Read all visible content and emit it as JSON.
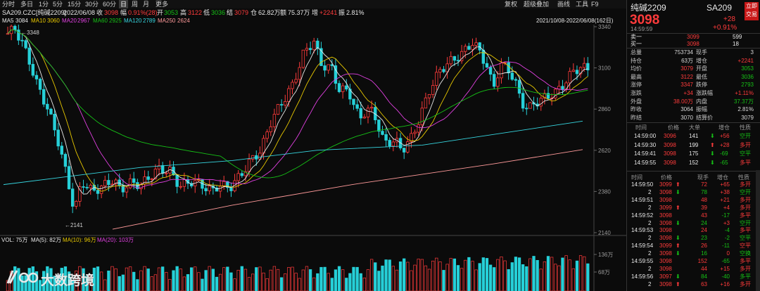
{
  "toolbar": {
    "periods": [
      "分时",
      "多日",
      "1分",
      "5分",
      "15分",
      "30分",
      "60分",
      "日",
      "周",
      "月",
      "更多"
    ],
    "active": "日",
    "right_items": [
      "复权",
      "超级叠加",
      "画线",
      "工具",
      "F9"
    ]
  },
  "infoline": {
    "symbol": "SA209.CZC[纯碱2209]",
    "date": "2022/06/08",
    "close_label": "收",
    "close": "3098",
    "change_label": "幅",
    "change": "0.91%(28)",
    "open_label": "开",
    "open": "3053",
    "high_label": "高",
    "high": "3122",
    "low_label": "低",
    "low": "3036",
    "settle_label": "结",
    "settle": "3079",
    "vol_label": "仓",
    "vol": "62.82万",
    "amount_label": "额",
    "amount": "75.37万",
    "oi_label": "增",
    "oi": "+2241",
    "amp_label": "振",
    "amp": "2.81%"
  },
  "maline": {
    "ma5_label": "MA5",
    "ma5": "3084",
    "ma10_label": "MA10",
    "ma10": "3060",
    "ma20_label": "MA20",
    "ma20": "2967",
    "ma60_label": "MA60",
    "ma60": "2925",
    "ma120_label": "MA120",
    "ma120": "2789",
    "ma250_label": "MA250",
    "ma250": "2624",
    "range": "2021/10/08-2022/06/08(162日)"
  },
  "colors": {
    "up": "#ff3b3b",
    "down": "#26d0d8",
    "ma5": "#e8e8e8",
    "ma10": "#e8c800",
    "ma20": "#e040e0",
    "ma60": "#16c116",
    "ma120": "#36d6e0",
    "ma250": "#ff9a9a"
  },
  "chart_data": {
    "type": "candlestick",
    "price_axis": {
      "ticks": [
        3340,
        3100,
        2860,
        2620,
        2380,
        2140
      ],
      "range": [
        2140,
        3340
      ]
    },
    "annotations": {
      "high": "3348",
      "low": "2141"
    },
    "volume_axis": {
      "ticks": [
        "136万",
        "68万"
      ]
    },
    "volume_legend": {
      "vol": "VOL: 75万",
      "ma5": "MA(5): 82万",
      "ma10": "MA(10): 96万",
      "ma20": "MA(20): 103万"
    },
    "candles": []
  },
  "panel": {
    "name": "纯碱2209",
    "code": "SA209",
    "price": "3098",
    "change": "+28",
    "pct": "+0.91%",
    "time": "14:59:59",
    "trade_button": [
      "立即",
      "交易"
    ],
    "book": [
      {
        "label": "卖一",
        "price": "3099",
        "vol": "599"
      },
      {
        "label": "买一",
        "price": "3098",
        "vol": "18"
      }
    ],
    "stats": [
      {
        "l1": "总量",
        "v1": "753734",
        "l2": "现手",
        "v2": "3",
        "c1": "white",
        "c2": "white"
      },
      {
        "l1": "持仓",
        "v1": "63万",
        "l2": "增仓",
        "v2": "+2241",
        "c1": "white",
        "c2": "red"
      },
      {
        "l1": "均价",
        "v1": "3079",
        "l2": "开盘",
        "v2": "3053",
        "c1": "red",
        "c2": "green"
      },
      {
        "l1": "最高",
        "v1": "3122",
        "l2": "最低",
        "v2": "3036",
        "c1": "red",
        "c2": "green"
      },
      {
        "l1": "涨停",
        "v1": "3347",
        "l2": "跌停",
        "v2": "2793",
        "c1": "red",
        "c2": "green"
      },
      {
        "l1": "涨跌",
        "v1": "+34",
        "l2": "涨跌幅",
        "v2": "+1.11%",
        "c1": "red",
        "c2": "red"
      },
      {
        "l1": "外盘",
        "v1": "38.00万",
        "l2": "内盘",
        "v2": "37.37万",
        "c1": "red",
        "c2": "green"
      },
      {
        "l1": "昨收",
        "v1": "3064",
        "l2": "振幅",
        "v2": "2.81%",
        "c1": "white",
        "c2": "white"
      },
      {
        "l1": "昨结",
        "v1": "3070",
        "l2": "结算价",
        "v2": "3079",
        "c1": "white",
        "c2": "white"
      }
    ],
    "trades_header": [
      "时间",
      "价格",
      "大单",
      "增仓",
      "性质"
    ],
    "trades": [
      {
        "t": "14:59:00",
        "p": "3096",
        "v": "141",
        "d": "+56",
        "n": "空开",
        "dir": "down"
      },
      {
        "t": "14:59:30",
        "p": "3098",
        "v": "199",
        "d": "+28",
        "n": "多开",
        "dir": "up"
      },
      {
        "t": "14:59:41",
        "p": "3098",
        "v": "175",
        "d": "-69",
        "n": "空平",
        "dir": "down"
      },
      {
        "t": "14:59:55",
        "p": "3098",
        "v": "152",
        "d": "-65",
        "n": "多平",
        "dir": "down"
      }
    ],
    "ticks_header": [
      "时间",
      "价格",
      "现手",
      "增仓",
      "性质"
    ],
    "ticks": [
      {
        "t": "14:59:50",
        "p": "3099",
        "v": "72",
        "d": "+65",
        "n": "多开",
        "dir": "up",
        "pc": "red",
        "nc": "red"
      },
      {
        "t": "2",
        "p": "3098",
        "v": "78",
        "d": "+38",
        "n": "空开",
        "dir": "down",
        "pc": "red",
        "nc": "green"
      },
      {
        "t": "14:59:51",
        "p": "3098",
        "v": "48",
        "d": "+21",
        "n": "多开",
        "dir": "",
        "pc": "red",
        "nc": "red"
      },
      {
        "t": "2",
        "p": "3099",
        "v": "39",
        "d": "+4",
        "n": "多开",
        "dir": "up",
        "pc": "red",
        "nc": "red"
      },
      {
        "t": "14:59:52",
        "p": "3098",
        "v": "43",
        "d": "-17",
        "n": "多平",
        "dir": "",
        "pc": "red",
        "nc": "red"
      },
      {
        "t": "2",
        "p": "3098",
        "v": "24",
        "d": "+3",
        "n": "空开",
        "dir": "down",
        "pc": "red",
        "nc": "green"
      },
      {
        "t": "14:59:53",
        "p": "3098",
        "v": "24",
        "d": "-4",
        "n": "多平",
        "dir": "",
        "pc": "red",
        "nc": "red"
      },
      {
        "t": "2",
        "p": "3098",
        "v": "23",
        "d": "-2",
        "n": "空平",
        "dir": "down",
        "pc": "red",
        "nc": "green"
      },
      {
        "t": "14:59:54",
        "p": "3099",
        "v": "26",
        "d": "-11",
        "n": "空平",
        "dir": "up",
        "pc": "red",
        "nc": "red"
      },
      {
        "t": "2",
        "p": "3098",
        "v": "16",
        "d": "0",
        "n": "空换",
        "dir": "down",
        "pc": "red",
        "nc": "green"
      },
      {
        "t": "14:59:55",
        "p": "3098",
        "v": "152",
        "d": "-65",
        "n": "多平",
        "dir": "",
        "pc": "red",
        "nc": "red"
      },
      {
        "t": "2",
        "p": "3098",
        "v": "44",
        "d": "+15",
        "n": "多开",
        "dir": "",
        "pc": "red",
        "nc": "red"
      },
      {
        "t": "14:59:56",
        "p": "3097",
        "v": "84",
        "d": "-40",
        "n": "多平",
        "dir": "down",
        "pc": "red",
        "nc": "green"
      },
      {
        "t": "2",
        "p": "3098",
        "v": "63",
        "d": "+16",
        "n": "多开",
        "dir": "up",
        "pc": "red",
        "nc": "red"
      }
    ]
  },
  "watermark": {
    "brand": "大数跨境"
  }
}
